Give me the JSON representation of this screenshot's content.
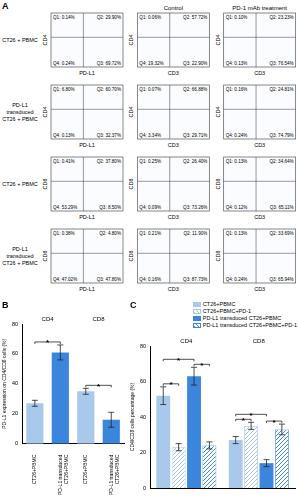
{
  "panel_a": {
    "panel_label": "A",
    "column_headers": [
      "Control",
      "PD-1 mAb treatment"
    ],
    "rows": [
      {
        "label": "CT26 + PBMC",
        "plots": [
          {
            "x_label": "PD-L1",
            "y_label": "CD4",
            "quadrants": [
              "Q1: 0.14%",
              "Q2: 29.90%",
              "Q3: 69.72%",
              "Q4: 0.24%"
            ]
          },
          {
            "x_label": "CD3",
            "y_label": "CD4",
            "quadrants": [
              "Q1: 0.06%",
              "Q2: 57.72%",
              "Q3: 22.90%",
              "Q4: 19.32%"
            ]
          },
          {
            "x_label": "CD3",
            "y_label": "CD4",
            "quadrants": [
              "Q1: 0.10%",
              "Q2: 23.23%",
              "Q3: 76.54%",
              "Q4: 0.13%"
            ]
          }
        ]
      },
      {
        "label": "PD-L1 transduced CT26 + PBMC",
        "plots": [
          {
            "x_label": "PD-L1",
            "y_label": "CD4",
            "quadrants": [
              "Q1: 6.80%",
              "Q2: 60.70%",
              "Q3: 32.37%",
              "Q4: 0.13%"
            ]
          },
          {
            "x_label": "CD3",
            "y_label": "CD4",
            "quadrants": [
              "Q1: 0.07%",
              "Q2: 66.88%",
              "Q3: 29.71%",
              "Q4: 3.34%"
            ]
          },
          {
            "x_label": "CD3",
            "y_label": "CD4",
            "quadrants": [
              "Q1: 0.16%",
              "Q2: 24.81%",
              "Q3: 74.79%",
              "Q4: 0.24%"
            ]
          }
        ]
      },
      {
        "label": "CT26 + PBMC",
        "plots": [
          {
            "x_label": "PD-L1",
            "y_label": "CD8",
            "quadrants": [
              "Q1: 0.41%",
              "Q2: 37.80%",
              "Q3: 8.50%",
              "Q4: 53.29%"
            ]
          },
          {
            "x_label": "CD3",
            "y_label": "CD8",
            "quadrants": [
              "Q1: 0.25%",
              "Q2: 26.40%",
              "Q3: 73.26%",
              "Q4: 0.09%"
            ]
          },
          {
            "x_label": "CD3",
            "y_label": "CD8",
            "quadrants": [
              "Q1: 0.13%",
              "Q2: 34.64%",
              "Q3: 65.11%",
              "Q4: 0.12%"
            ]
          }
        ]
      },
      {
        "label": "PD-L1 transduced CT26 + PBMC",
        "plots": [
          {
            "x_label": "PD-L1",
            "y_label": "CD8",
            "quadrants": [
              "Q1: 0.38%",
              "Q2: 4.80%",
              "Q3: 47.80%",
              "Q4: 47.02%"
            ]
          },
          {
            "x_label": "CD3",
            "y_label": "CD8",
            "quadrants": [
              "Q1: 0.21%",
              "Q2: 11.90%",
              "Q3: 87.73%",
              "Q4: 0.16%"
            ]
          },
          {
            "x_label": "CD3",
            "y_label": "CD8",
            "quadrants": [
              "Q1: 0.13%",
              "Q2: 33.69%",
              "Q3: 65.94%",
              "Q4: 0.24%"
            ]
          }
        ]
      }
    ]
  },
  "chart_data": [
    {
      "panel_label": "B",
      "type": "bar",
      "categories": [
        "CT26+PBMC",
        "PD-L1 transduced CT26+PBMC",
        "CT26+PBMC",
        "PD-L1 transduced CT26+PBMC"
      ],
      "values": [
        27,
        61,
        35,
        16
      ],
      "errors": [
        2,
        5,
        2,
        5
      ],
      "colors": [
        "#a9c9ec",
        "#3b86dc",
        "#a9c9ec",
        "#3b86dc"
      ],
      "y_label": "PD-L1 expression on CD4/CD8 cells (%)",
      "ylim": [
        0,
        80
      ],
      "yticks": [
        0,
        20,
        40,
        60,
        80
      ],
      "grid": false,
      "groups": [
        {
          "label": "CD4",
          "categories": [
            0,
            1
          ]
        },
        {
          "label": "CD8",
          "categories": [
            2,
            3
          ]
        }
      ],
      "significance": [
        {
          "text": "*",
          "from": 0,
          "to": 1
        },
        {
          "text": "*",
          "from": 2,
          "to": 3
        }
      ]
    },
    {
      "panel_label": "C",
      "type": "bar",
      "categories": [
        "CD4",
        "CD8"
      ],
      "series": [
        {
          "name": "CT26+PBMC",
          "color": "#a9c9ec",
          "marker": "solid",
          "values": [
            52,
            27
          ],
          "errors": [
            5,
            2
          ]
        },
        {
          "name": "CT26+PBMC+PD-1",
          "color": "#a9c9ec",
          "marker": "hatch",
          "values": [
            23,
            35
          ],
          "errors": [
            2,
            2
          ]
        },
        {
          "name": "PD-L1 transduced CT26+PBMC",
          "color": "#3b86dc",
          "marker": "solid",
          "values": [
            63,
            14
          ],
          "errors": [
            5,
            2
          ]
        },
        {
          "name": "PD-L1 transduced CT26+PBMC+PD-1",
          "color": "#3b86dc",
          "marker": "hatch",
          "values": [
            24,
            33
          ],
          "errors": [
            2,
            3
          ]
        }
      ],
      "y_label": "CD4/CD8 cells percentage (%)",
      "ylim": [
        0,
        80
      ],
      "yticks": [
        0,
        20,
        40,
        60,
        80
      ],
      "grid": false,
      "legend": "top-right",
      "tick_labels": "y",
      "significance": [
        {
          "text": "*",
          "category": 0,
          "from": 0,
          "to": 1
        },
        {
          "text": "*",
          "category": 0,
          "from": 0,
          "to": 2
        },
        {
          "text": "*",
          "category": 0,
          "from": 2,
          "to": 3
        },
        {
          "text": "*",
          "category": 1,
          "from": 0,
          "to": 1
        },
        {
          "text": "*",
          "category": 1,
          "from": 0,
          "to": 2
        },
        {
          "text": "*",
          "category": 1,
          "from": 2,
          "to": 3
        }
      ]
    }
  ]
}
